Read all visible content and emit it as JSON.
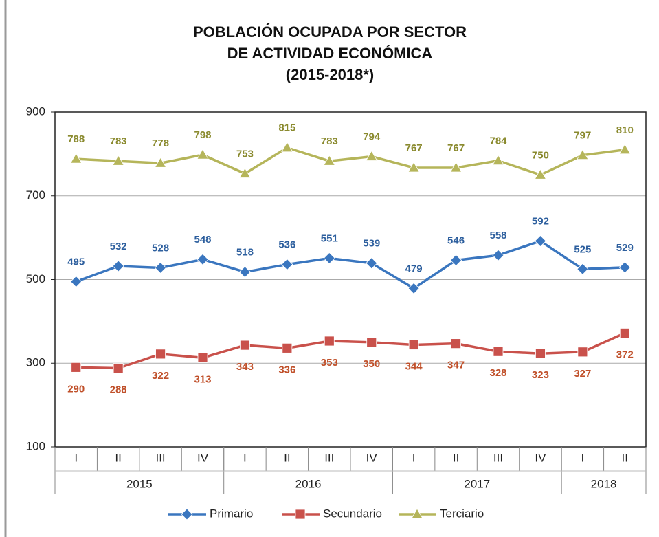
{
  "chart_data": {
    "type": "line",
    "title": [
      "POBLACIÓN OCUPADA POR SECTOR",
      "DE ACTIVIDAD ECONÓMICA",
      "(2015-2018*)"
    ],
    "categories": [
      "I",
      "II",
      "III",
      "IV",
      "I",
      "II",
      "III",
      "IV",
      "I",
      "II",
      "III",
      "IV",
      "I",
      "II"
    ],
    "years": [
      "2015",
      "2016",
      "2017",
      "2018"
    ],
    "series": [
      {
        "name": "Primario",
        "color": "#3a76bf",
        "label_color": "#2d5f9e",
        "marker": "diamond",
        "values": [
          495,
          532,
          528,
          548,
          518,
          536,
          551,
          539,
          479,
          546,
          558,
          592,
          525,
          529
        ]
      },
      {
        "name": "Secundario",
        "color": "#c9514b",
        "label_color": "#c0502a",
        "marker": "square",
        "values": [
          290,
          288,
          322,
          313,
          343,
          336,
          353,
          350,
          344,
          347,
          328,
          323,
          327,
          372
        ]
      },
      {
        "name": "Terciario",
        "color": "#b5b55a",
        "label_color": "#8a8a2e",
        "marker": "triangle",
        "values": [
          788,
          783,
          778,
          798,
          753,
          815,
          783,
          794,
          767,
          767,
          784,
          750,
          797,
          810
        ]
      }
    ],
    "ylim": [
      100,
      900
    ],
    "yticks": [
      100,
      300,
      500,
      700,
      900
    ],
    "grid": true,
    "legend": "bottom"
  }
}
